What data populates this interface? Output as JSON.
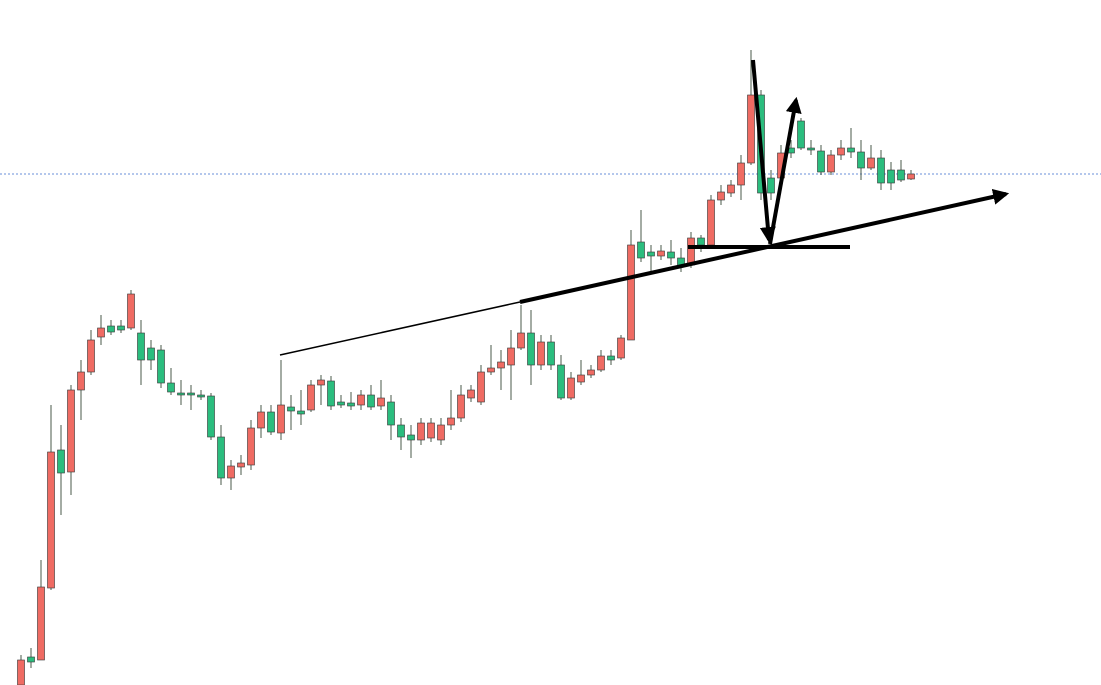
{
  "chart_data": {
    "type": "candlestick",
    "ylim": [
      0,
      685
    ],
    "up_color": "#ef6b63",
    "down_color": "#2bbd7e",
    "wick_color": "#4a5a4a",
    "price_line": 511,
    "price_line_color": "#6a8fd8",
    "open": [
      0,
      28,
      25,
      97,
      235,
      213,
      295,
      313,
      348,
      359,
      359,
      357,
      352,
      337,
      335,
      302,
      292,
      292,
      290,
      289,
      248,
      207,
      218,
      220,
      257,
      273,
      252,
      278,
      274,
      275,
      300,
      304,
      283,
      282,
      280,
      290,
      279,
      283,
      260,
      250,
      245,
      247,
      245,
      260,
      267,
      287,
      283,
      313,
      317,
      320,
      337,
      352,
      320,
      343,
      320,
      287,
      303,
      310,
      315,
      329,
      327,
      345,
      443,
      433,
      429,
      433,
      427,
      420,
      447,
      440,
      485,
      492,
      500,
      522,
      590,
      507,
      507,
      537,
      564,
      537,
      534,
      513,
      530,
      537,
      533,
      517,
      527,
      515,
      515,
      506
    ],
    "high": [
      30,
      37,
      125,
      280,
      260,
      300,
      325,
      355,
      370,
      365,
      365,
      395,
      365,
      345,
      340,
      317,
      305,
      300,
      295,
      292,
      260,
      225,
      230,
      265,
      280,
      280,
      325,
      290,
      295,
      305,
      310,
      309,
      290,
      293,
      295,
      300,
      305,
      290,
      267,
      260,
      267,
      267,
      267,
      295,
      300,
      300,
      320,
      340,
      335,
      355,
      380,
      375,
      350,
      350,
      330,
      313,
      325,
      320,
      335,
      335,
      350,
      455,
      475,
      440,
      440,
      445,
      437,
      453,
      450,
      490,
      500,
      505,
      530,
      635,
      595,
      515,
      540,
      545,
      567,
      545,
      540,
      535,
      545,
      557,
      545,
      540,
      535,
      523,
      525,
      515
    ],
    "low": [
      0,
      17,
      25,
      95,
      170,
      190,
      265,
      310,
      340,
      350,
      352,
      355,
      300,
      315,
      297,
      290,
      280,
      275,
      285,
      245,
      200,
      195,
      210,
      215,
      247,
      250,
      245,
      255,
      260,
      273,
      280,
      275,
      277,
      275,
      275,
      275,
      275,
      245,
      235,
      227,
      240,
      243,
      240,
      255,
      263,
      283,
      280,
      310,
      295,
      285,
      335,
      300,
      315,
      315,
      285,
      285,
      300,
      307,
      313,
      320,
      325,
      345,
      423,
      413,
      425,
      420,
      413,
      417,
      433,
      437,
      480,
      488,
      485,
      520,
      485,
      485,
      500,
      527,
      535,
      530,
      510,
      510,
      525,
      527,
      505,
      515,
      495,
      495,
      503,
      505
    ],
    "close": [
      25,
      23,
      98,
      233,
      212,
      295,
      313,
      345,
      357,
      353,
      355,
      391,
      325,
      325,
      302,
      293,
      290,
      290,
      288,
      248,
      207,
      219,
      222,
      257,
      273,
      253,
      280,
      274,
      271,
      300,
      305,
      279,
      280,
      279,
      290,
      278,
      287,
      260,
      248,
      245,
      262,
      262,
      260,
      267,
      290,
      295,
      313,
      317,
      323,
      337,
      352,
      320,
      343,
      320,
      287,
      307,
      310,
      315,
      329,
      325,
      347,
      440,
      427,
      429,
      434,
      427,
      419,
      447,
      440,
      485,
      493,
      500,
      522,
      590,
      492,
      492,
      532,
      532,
      537,
      535,
      513,
      530,
      537,
      533,
      517,
      527,
      502,
      502,
      505,
      511
    ]
  }
}
